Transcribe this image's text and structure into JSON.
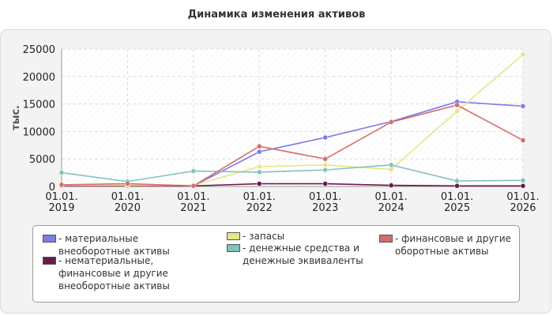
{
  "chart_data": {
    "type": "line",
    "title": "Динамика изменения активов",
    "xlabel": "",
    "ylabel": "тыс.",
    "ylim": [
      0,
      25000
    ],
    "yticks": [
      0,
      5000,
      10000,
      15000,
      20000,
      25000
    ],
    "categories": [
      "01.01.\n2019",
      "01.01.\n2020",
      "01.01.\n2021",
      "01.01.\n2022",
      "01.01.\n2023",
      "01.01.\n2024",
      "01.01.\n2025",
      "01.01.\n2026"
    ],
    "grid": true,
    "legend_position": "bottom",
    "series": [
      {
        "name": "- материальные внеоборотные активы",
        "color": "#7b7bea",
        "values": [
          100,
          100,
          100,
          6300,
          8900,
          11800,
          15400,
          14600
        ]
      },
      {
        "name": "- нематериальные, финансовые и другие внеоборотные активы",
        "color": "#6b1a4a",
        "values": [
          100,
          100,
          100,
          500,
          500,
          200,
          100,
          100
        ]
      },
      {
        "name": "- запасы",
        "color": "#e6e68a",
        "values": [
          200,
          200,
          200,
          3600,
          3900,
          3100,
          13700,
          24000
        ]
      },
      {
        "name": "- денежные средства и денежные эквиваленты",
        "color": "#82c2bd",
        "values": [
          2500,
          900,
          2800,
          2600,
          3000,
          3900,
          1000,
          1100
        ]
      },
      {
        "name": "- финансовые и другие оборотные активы",
        "color": "#d96a6a",
        "values": [
          300,
          500,
          100,
          7300,
          5000,
          11700,
          14800,
          8400
        ]
      }
    ]
  }
}
